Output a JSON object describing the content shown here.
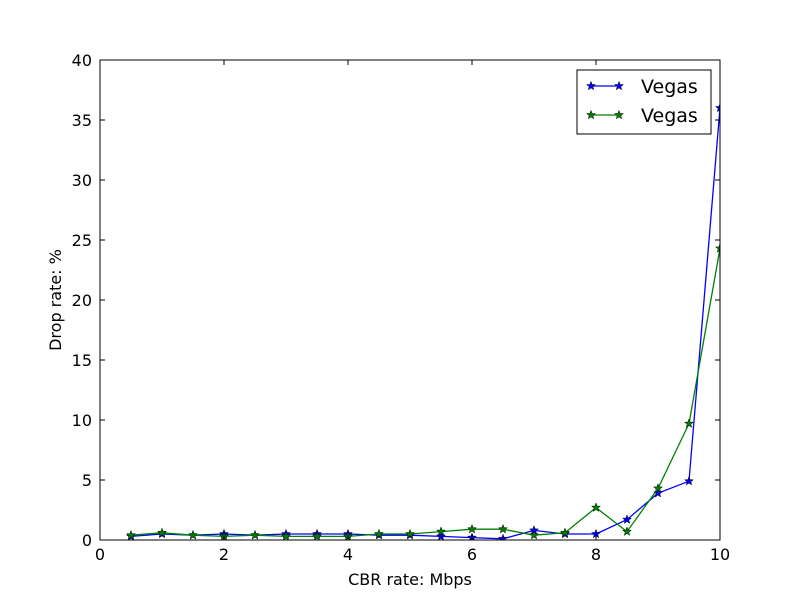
{
  "chart_data": {
    "type": "line",
    "title": "",
    "xlabel": "CBR rate: Mbps",
    "ylabel": "Drop rate: %",
    "xlim": [
      0,
      10
    ],
    "ylim": [
      0,
      40
    ],
    "xticks": [
      0,
      2,
      4,
      6,
      8,
      10
    ],
    "yticks": [
      0,
      5,
      10,
      15,
      20,
      25,
      30,
      35,
      40
    ],
    "grid": false,
    "legend_position": "top-right",
    "x": [
      0.5,
      1,
      1.5,
      2,
      2.5,
      3,
      3.5,
      4,
      4.5,
      5,
      5.5,
      6,
      6.5,
      7,
      7.5,
      8,
      8.5,
      9,
      9.5,
      10
    ],
    "series": [
      {
        "name": "Vegas",
        "color": "#0000ff",
        "marker": "star",
        "values": [
          0.3,
          0.5,
          0.4,
          0.5,
          0.4,
          0.5,
          0.5,
          0.5,
          0.4,
          0.4,
          0.3,
          0.2,
          0.1,
          0.8,
          0.5,
          0.5,
          1.7,
          3.9,
          4.9,
          36.0
        ]
      },
      {
        "name": "Vegas",
        "color": "#008000",
        "marker": "star",
        "values": [
          0.4,
          0.6,
          0.4,
          0.3,
          0.4,
          0.3,
          0.3,
          0.3,
          0.5,
          0.5,
          0.7,
          0.9,
          0.9,
          0.4,
          0.6,
          2.7,
          0.7,
          4.3,
          9.7,
          24.3
        ]
      }
    ]
  }
}
